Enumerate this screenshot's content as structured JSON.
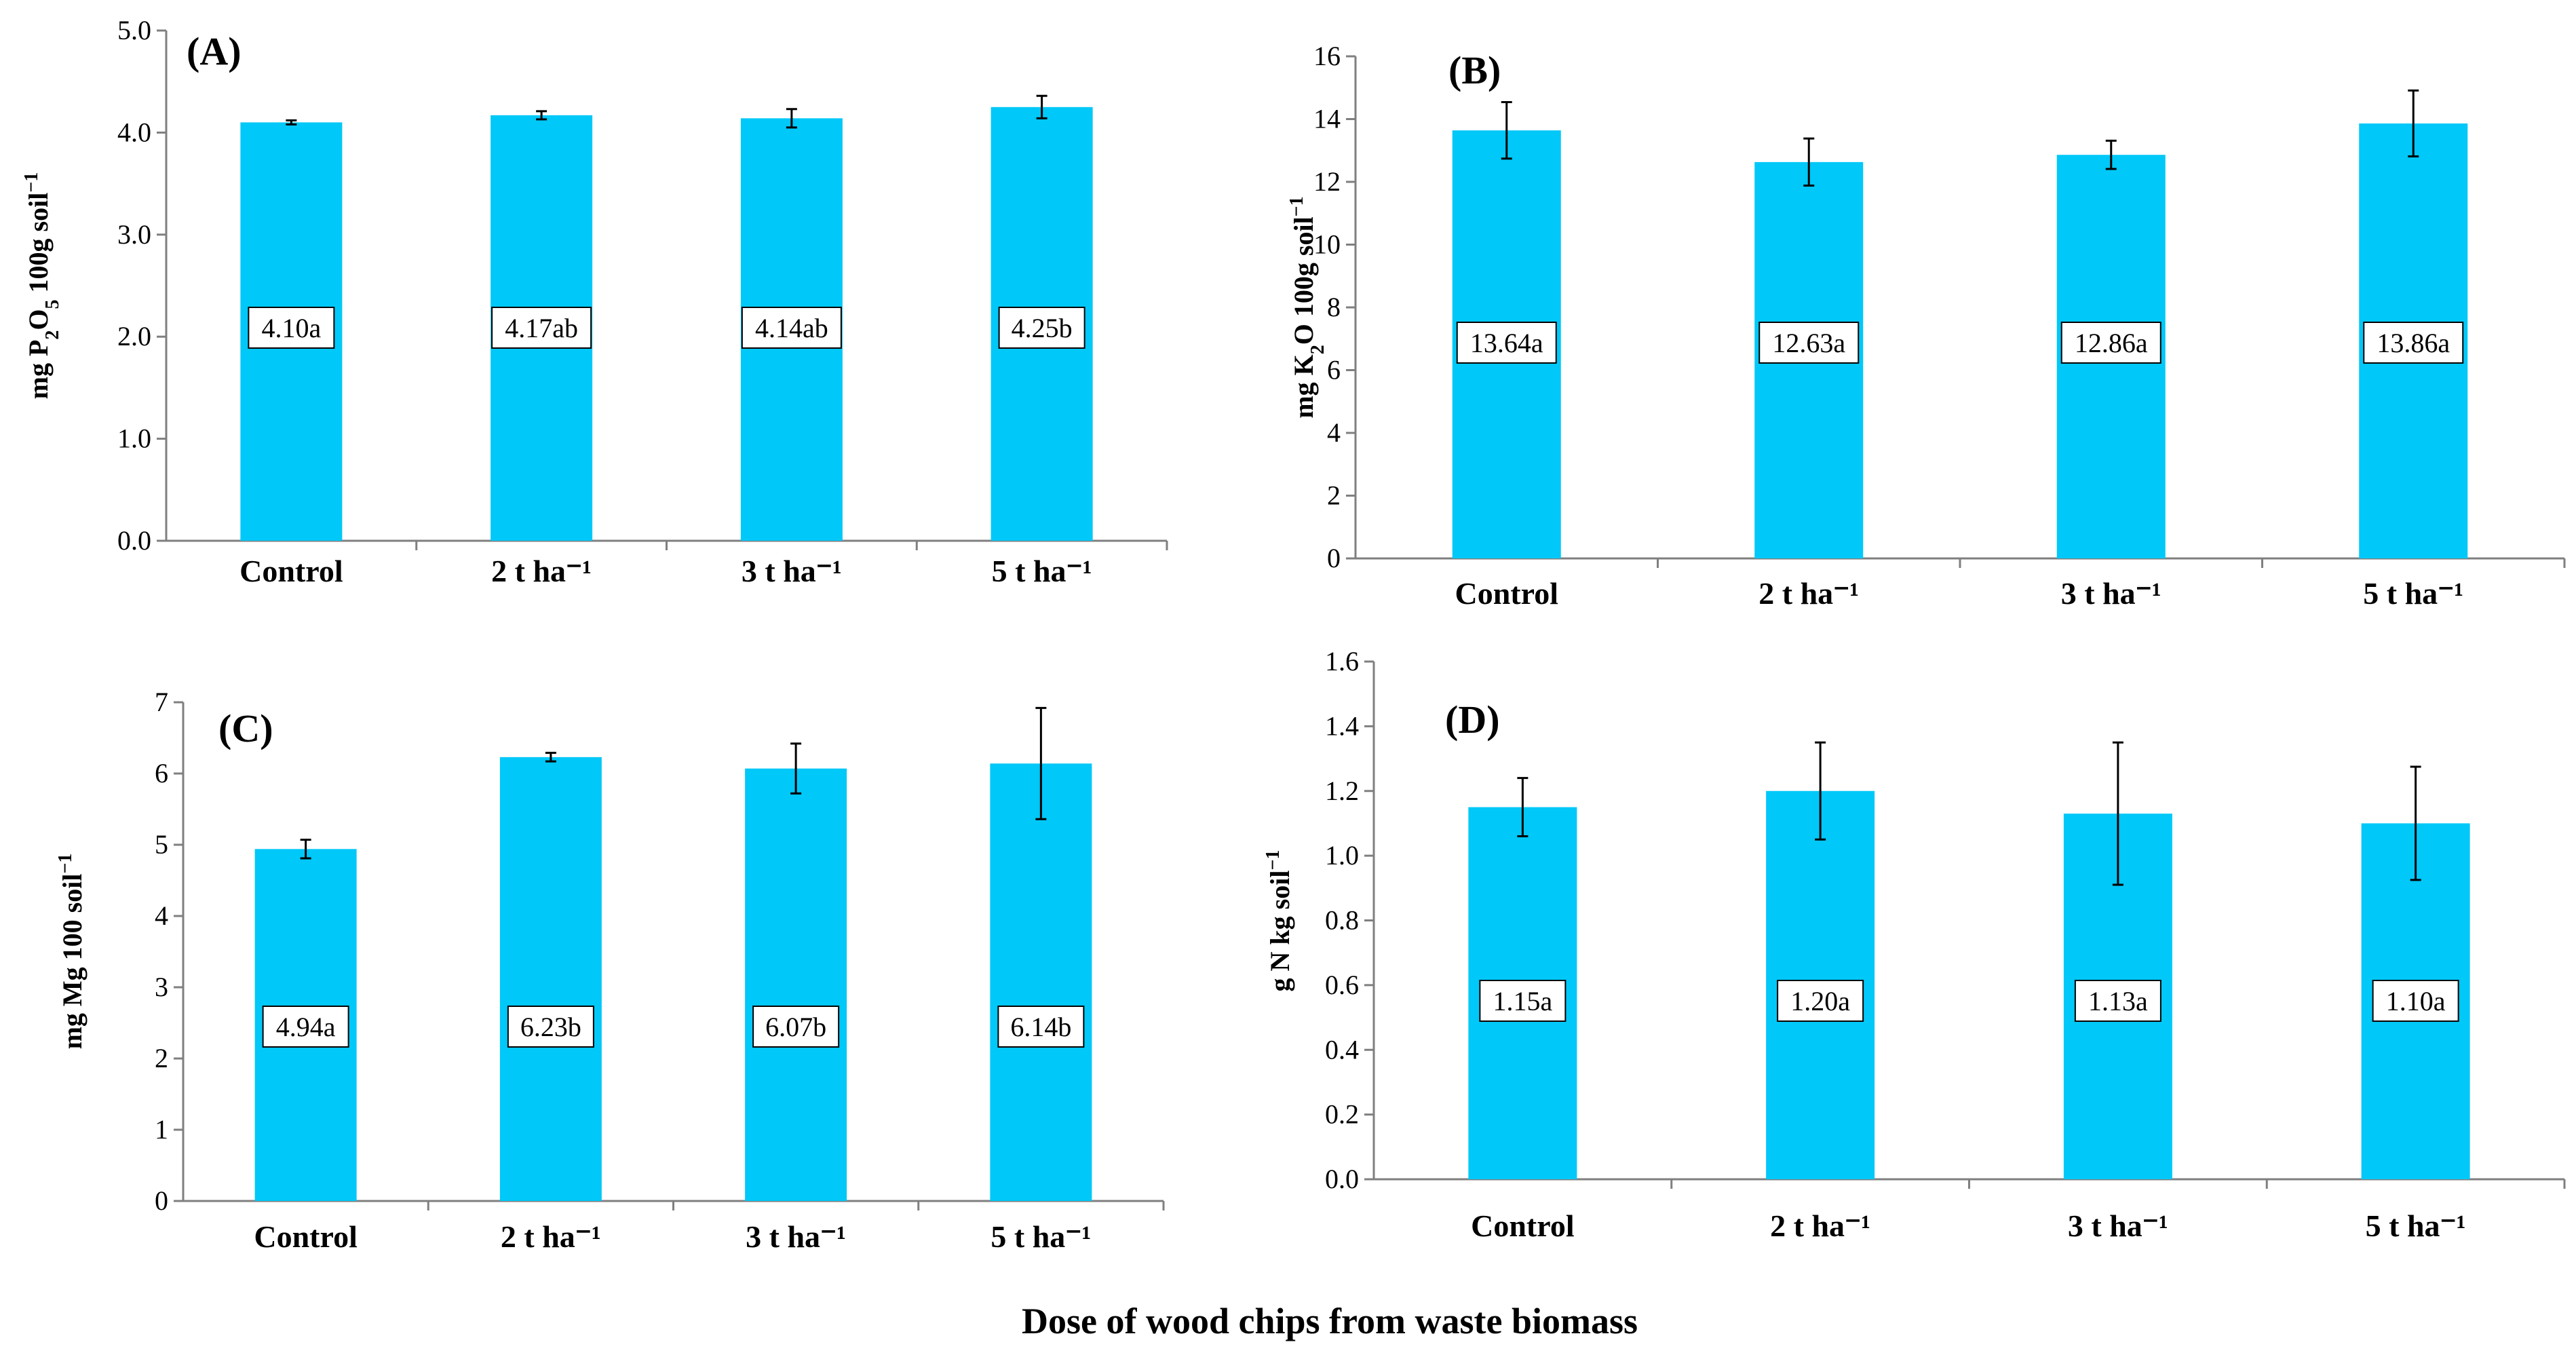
{
  "figure": {
    "xlabel": "Dose of wood chips from waste biomass",
    "colors": {
      "bar": "#00c8f8",
      "axis": "#7f7f7f",
      "text": "#000000",
      "label_box": "#ffffff"
    }
  },
  "chart_data": [
    {
      "type": "bar",
      "panel_label": "(A)",
      "ylabel_parts": [
        "mg P",
        "2",
        "O",
        "5",
        " 100g soil",
        "−1"
      ],
      "categories": [
        "Control",
        "2 t ha⁻¹",
        "3 t ha⁻¹",
        "5 t ha⁻¹"
      ],
      "values": [
        4.1,
        4.17,
        4.14,
        4.25
      ],
      "errors": [
        0.02,
        0.04,
        0.09,
        0.11
      ],
      "data_labels": [
        "4.10a",
        "4.17ab",
        "4.14ab",
        "4.25b"
      ],
      "ylim": [
        0,
        5
      ],
      "yticks": [
        "0.0",
        "1.0",
        "2.0",
        "3.0",
        "4.0",
        "5.0"
      ]
    },
    {
      "type": "bar",
      "panel_label": "(B)",
      "ylabel_parts": [
        "mg K",
        "2",
        "O 100g soil",
        "−1"
      ],
      "categories": [
        "Control",
        "2 t ha⁻¹",
        "3 t ha⁻¹",
        "5 t ha⁻¹"
      ],
      "values": [
        13.64,
        12.63,
        12.86,
        13.86
      ],
      "errors": [
        0.9,
        0.75,
        0.45,
        1.05
      ],
      "data_labels": [
        "13.64a",
        "12.63a",
        "12.86a",
        "13.86a"
      ],
      "ylim": [
        0,
        16
      ],
      "yticks": [
        "0",
        "2",
        "4",
        "6",
        "8",
        "10",
        "12",
        "14",
        "16"
      ]
    },
    {
      "type": "bar",
      "panel_label": "(C)",
      "ylabel_parts": [
        "mg  Mg 100 soil",
        "−1"
      ],
      "categories": [
        "Control",
        "2 t ha⁻¹",
        "3 t ha⁻¹",
        "5 t ha⁻¹"
      ],
      "values": [
        4.94,
        6.23,
        6.07,
        6.14
      ],
      "errors": [
        0.13,
        0.06,
        0.35,
        0.78
      ],
      "data_labels": [
        "4.94a",
        "6.23b",
        "6.07b",
        "6.14b"
      ],
      "ylim": [
        0,
        7
      ],
      "yticks": [
        "0",
        "1",
        "2",
        "3",
        "4",
        "5",
        "6",
        "7"
      ]
    },
    {
      "type": "bar",
      "panel_label": "(D)",
      "ylabel_parts": [
        "g N kg soil",
        "−1"
      ],
      "categories": [
        "Control",
        "2 t ha⁻¹",
        "3 t ha⁻¹",
        "5 t ha⁻¹"
      ],
      "values": [
        1.15,
        1.2,
        1.13,
        1.1
      ],
      "errors": [
        0.09,
        0.15,
        0.22,
        0.175
      ],
      "data_labels": [
        "1.15a",
        "1.20a",
        "1.13a",
        "1.10a"
      ],
      "ylim": [
        0,
        1.6
      ],
      "yticks": [
        "0.0",
        "0.2",
        "0.4",
        "0.6",
        "0.8",
        "1.0",
        "1.2",
        "1.4",
        "1.6"
      ]
    }
  ]
}
